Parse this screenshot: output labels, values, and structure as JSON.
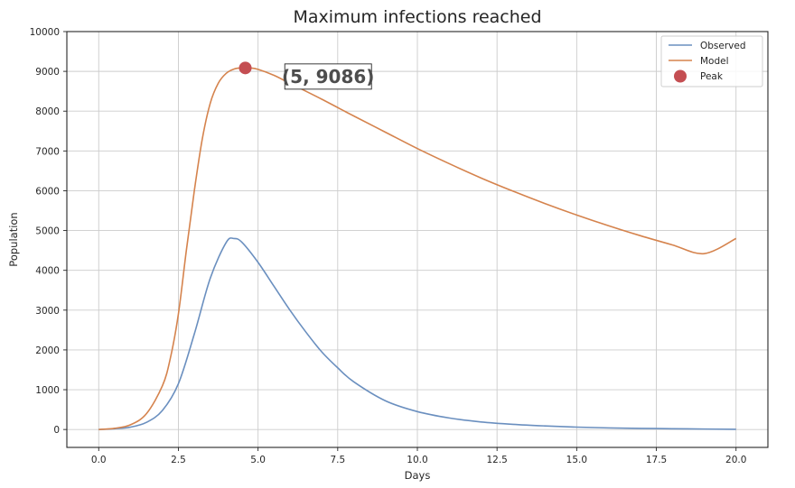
{
  "chart_data": {
    "type": "line",
    "title": "Maximum infections reached",
    "xlabel": "Days",
    "ylabel": "Population",
    "xlim": [
      -1.0,
      21.0
    ],
    "ylim": [
      -450,
      10000
    ],
    "xticks": [
      0.0,
      2.5,
      5.0,
      7.5,
      10.0,
      12.5,
      15.0,
      17.5,
      20.0
    ],
    "xtick_labels": [
      "0.0",
      "2.5",
      "5.0",
      "7.5",
      "10.0",
      "12.5",
      "15.0",
      "17.5",
      "20.0"
    ],
    "yticks": [
      0,
      1000,
      2000,
      3000,
      4000,
      5000,
      6000,
      7000,
      8000,
      9000,
      10000
    ],
    "ytick_labels": [
      "0",
      "1000",
      "2000",
      "3000",
      "4000",
      "5000",
      "6000",
      "7000",
      "8000",
      "9000",
      "10000"
    ],
    "grid": true,
    "legend_position": "top-right",
    "series": [
      {
        "name": "Observed",
        "color": "#6a8fbf",
        "x": [
          0,
          0.5,
          1.0,
          1.5,
          2.0,
          2.5,
          3.0,
          3.5,
          4.0,
          4.25,
          4.5,
          5.0,
          5.5,
          6.0,
          6.5,
          7.0,
          7.5,
          8.0,
          9.0,
          10.0,
          11.0,
          12.0,
          13.0,
          14.0,
          15.0,
          16.0,
          17.0,
          18.0,
          19.0,
          20.0
        ],
        "y": [
          0,
          20,
          60,
          180,
          480,
          1150,
          2400,
          3800,
          4700,
          4800,
          4700,
          4200,
          3600,
          3000,
          2450,
          1950,
          1550,
          1200,
          720,
          450,
          290,
          190,
          130,
          90,
          60,
          40,
          28,
          20,
          12,
          5
        ]
      },
      {
        "name": "Model",
        "color": "#d5834d",
        "x": [
          0,
          0.5,
          1.0,
          1.5,
          2.0,
          2.25,
          2.5,
          2.75,
          3.0,
          3.25,
          3.5,
          3.75,
          4.0,
          4.25,
          4.5,
          4.75,
          5.0,
          5.5,
          6.0,
          7.0,
          8.0,
          9.0,
          10.0,
          11.0,
          12.0,
          13.0,
          14.0,
          15.0,
          16.0,
          17.0,
          18.0,
          19.0,
          20.0
        ],
        "y": [
          0,
          30,
          120,
          400,
          1100,
          1800,
          2900,
          4500,
          6000,
          7300,
          8200,
          8700,
          8950,
          9060,
          9090,
          9086,
          9050,
          8900,
          8700,
          8300,
          7880,
          7470,
          7060,
          6680,
          6320,
          5990,
          5680,
          5390,
          5120,
          4870,
          4640,
          4420,
          4800
        ]
      },
      {
        "name": "Peak",
        "color": "#c44e52",
        "marker": "circle",
        "x": [
          4.6
        ],
        "y": [
          9086
        ]
      }
    ],
    "annotation": {
      "text": "(5, 9086)",
      "x": 7.2,
      "y": 8870
    }
  }
}
